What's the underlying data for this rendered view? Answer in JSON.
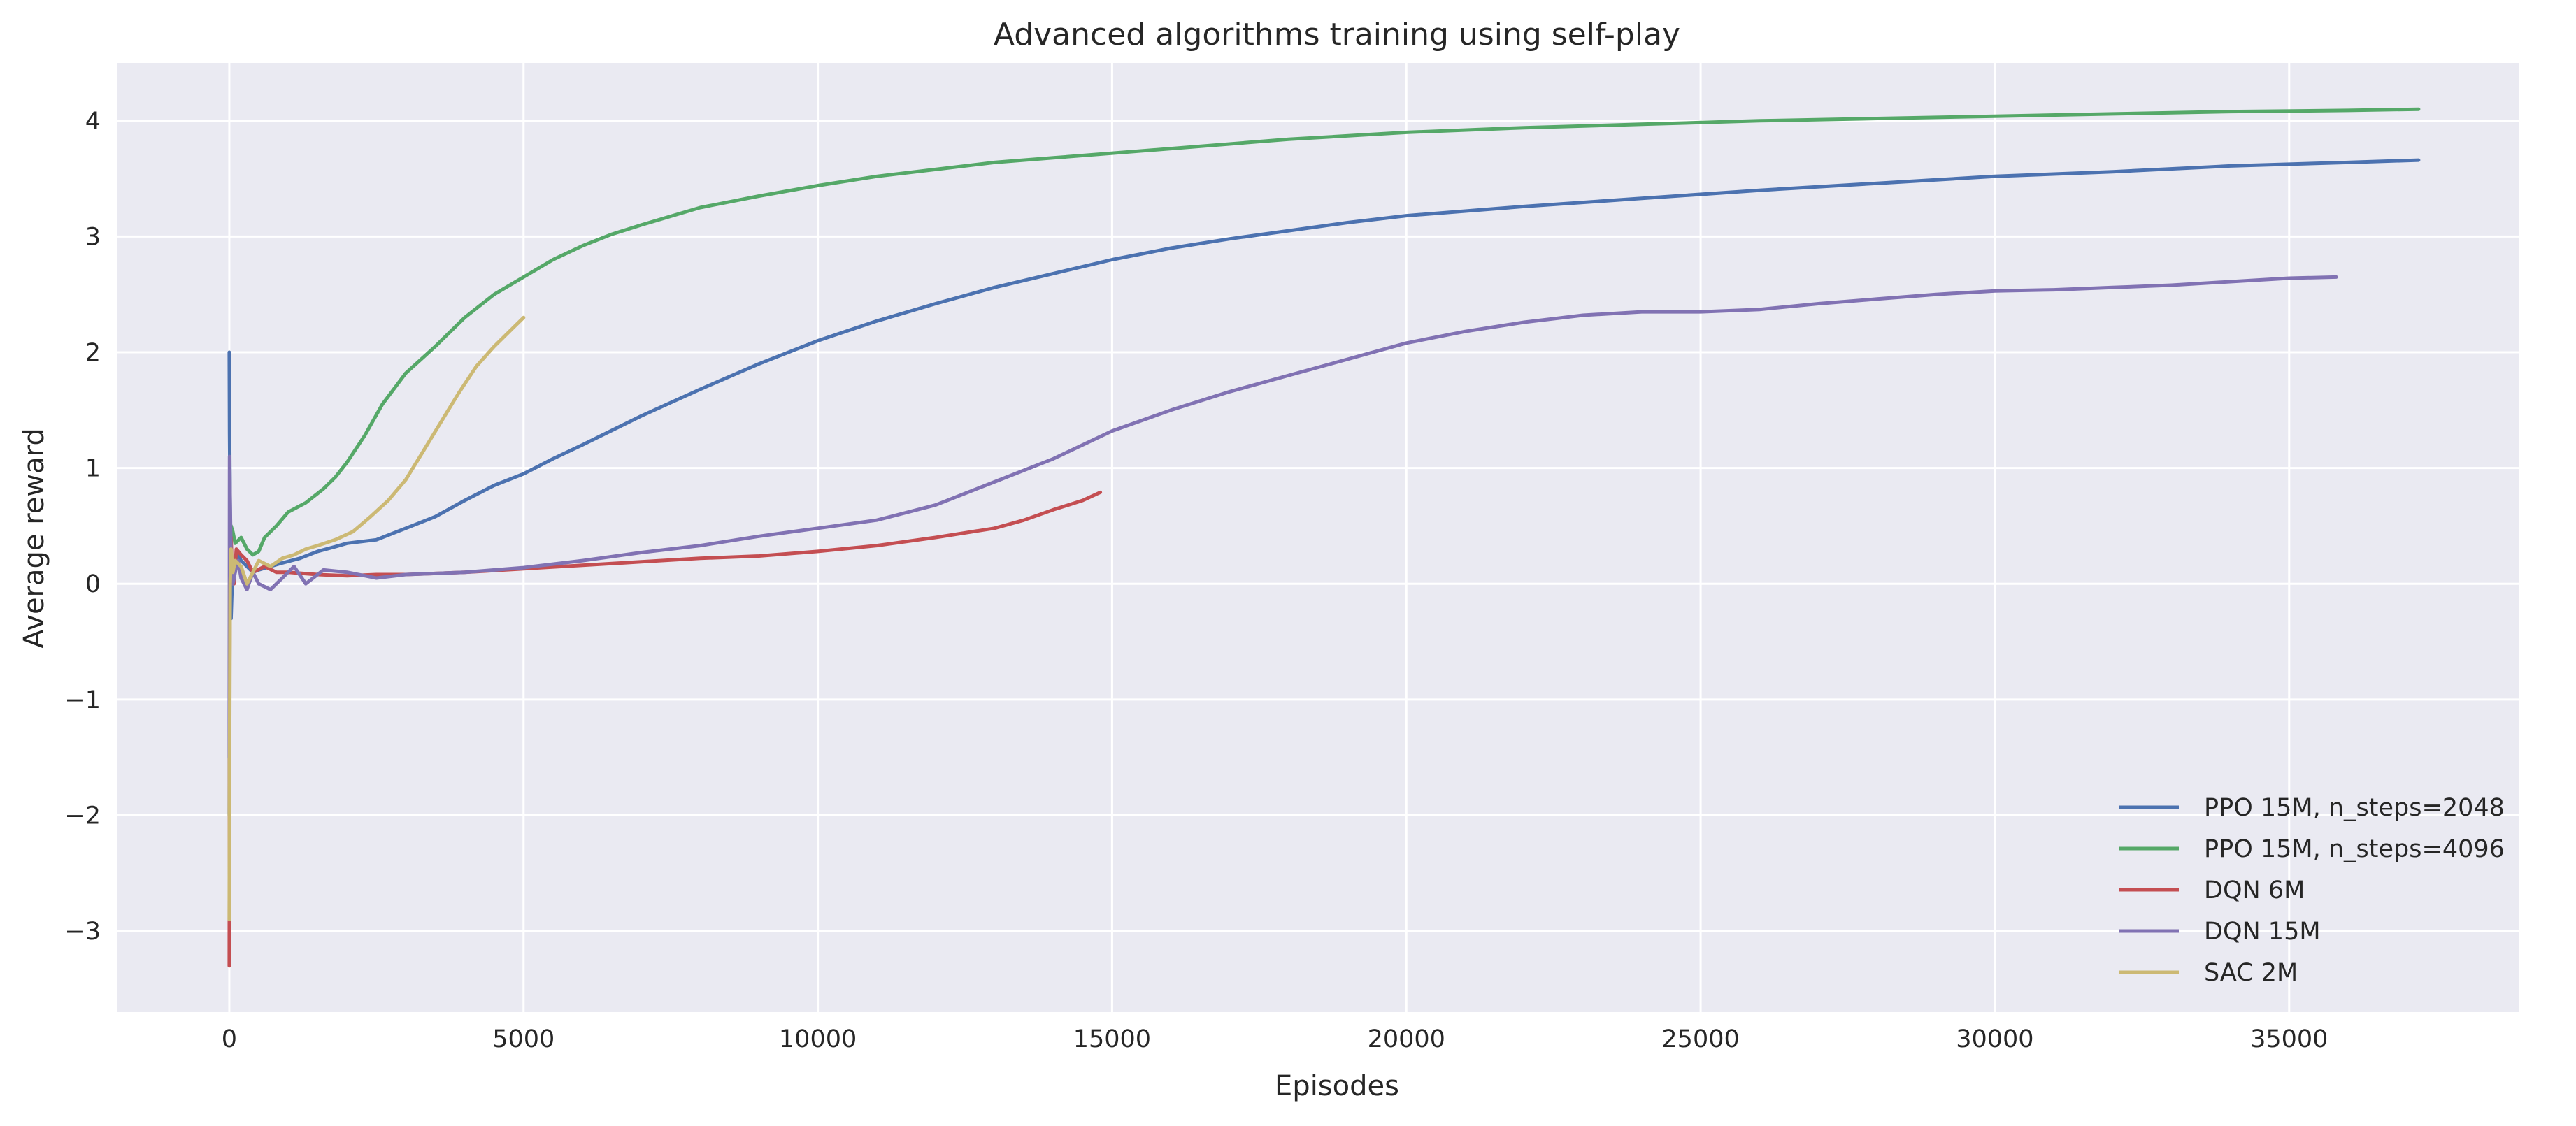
{
  "chart_data": {
    "type": "line",
    "title": "Advanced algorithms training using self-play",
    "xlabel": "Episodes",
    "ylabel": "Average reward",
    "xlim": [
      -1900,
      38900
    ],
    "ylim": [
      -3.7,
      4.5
    ],
    "xticks": [
      0,
      5000,
      10000,
      15000,
      20000,
      25000,
      30000,
      35000
    ],
    "xtick_labels": [
      "0",
      "5000",
      "10000",
      "15000",
      "20000",
      "25000",
      "30000",
      "35000"
    ],
    "yticks": [
      -3,
      -2,
      -1,
      0,
      1,
      2,
      3,
      4
    ],
    "ytick_labels": [
      "−3",
      "−2",
      "−1",
      "0",
      "1",
      "2",
      "3",
      "4"
    ],
    "grid": true,
    "legend_position": "lower-right",
    "background_color": "#eaeaf2",
    "series": [
      {
        "name": "PPO 15M, n_steps=2048",
        "color": "#4c72b0",
        "x": [
          0,
          5,
          15,
          30,
          60,
          100,
          150,
          200,
          300,
          400,
          500,
          700,
          900,
          1200,
          1500,
          1800,
          2000,
          2500,
          3000,
          3500,
          4000,
          4500,
          5000,
          5500,
          6000,
          7000,
          8000,
          9000,
          10000,
          11000,
          12000,
          13000,
          14000,
          15000,
          16000,
          17000,
          18000,
          19000,
          20000,
          22000,
          24000,
          26000,
          28000,
          30000,
          32000,
          34000,
          36000,
          37200
        ],
        "y": [
          2.0,
          1.3,
          0.6,
          -0.3,
          0.2,
          0.1,
          0.25,
          0.2,
          0.15,
          0.1,
          0.12,
          0.15,
          0.18,
          0.22,
          0.28,
          0.32,
          0.35,
          0.38,
          0.48,
          0.58,
          0.72,
          0.85,
          0.95,
          1.08,
          1.2,
          1.45,
          1.68,
          1.9,
          2.1,
          2.27,
          2.42,
          2.56,
          2.68,
          2.8,
          2.9,
          2.98,
          3.05,
          3.12,
          3.18,
          3.26,
          3.33,
          3.4,
          3.46,
          3.52,
          3.56,
          3.61,
          3.64,
          3.66
        ]
      },
      {
        "name": "PPO 15M, n_steps=4096",
        "color": "#55a868",
        "x": [
          0,
          10,
          30,
          60,
          100,
          200,
          300,
          400,
          500,
          600,
          800,
          1000,
          1300,
          1600,
          1800,
          2000,
          2300,
          2600,
          3000,
          3500,
          4000,
          4500,
          5000,
          5500,
          6000,
          6500,
          7000,
          8000,
          9000,
          10000,
          11000,
          12000,
          13000,
          14000,
          16000,
          18000,
          20000,
          22000,
          24000,
          26000,
          28000,
          30000,
          32000,
          34000,
          36000,
          37200
        ],
        "y": [
          -2.0,
          0.4,
          0.5,
          0.45,
          0.35,
          0.4,
          0.3,
          0.25,
          0.28,
          0.4,
          0.5,
          0.62,
          0.7,
          0.82,
          0.92,
          1.05,
          1.28,
          1.55,
          1.82,
          2.05,
          2.3,
          2.5,
          2.65,
          2.8,
          2.92,
          3.02,
          3.1,
          3.25,
          3.35,
          3.44,
          3.52,
          3.58,
          3.64,
          3.68,
          3.76,
          3.84,
          3.9,
          3.94,
          3.97,
          4.0,
          4.02,
          4.04,
          4.06,
          4.08,
          4.09,
          4.1
        ]
      },
      {
        "name": "DQN 6M",
        "color": "#c44e52",
        "x": [
          0,
          5,
          15,
          30,
          50,
          80,
          120,
          200,
          300,
          400,
          600,
          800,
          1000,
          1500,
          2000,
          2500,
          3000,
          4000,
          5000,
          6000,
          7000,
          8000,
          9000,
          10000,
          11000,
          12000,
          13000,
          13500,
          14000,
          14500,
          14800
        ],
        "y": [
          -3.3,
          -0.9,
          0.2,
          0.4,
          0.1,
          0.0,
          0.3,
          0.25,
          0.2,
          0.1,
          0.15,
          0.1,
          0.1,
          0.08,
          0.07,
          0.08,
          0.08,
          0.1,
          0.13,
          0.16,
          0.19,
          0.22,
          0.24,
          0.28,
          0.33,
          0.4,
          0.48,
          0.55,
          0.64,
          0.72,
          0.79
        ]
      },
      {
        "name": "DQN 15M",
        "color": "#8172b3",
        "x": [
          0,
          5,
          15,
          30,
          60,
          100,
          150,
          200,
          300,
          400,
          500,
          700,
          900,
          1100,
          1300,
          1600,
          2000,
          2500,
          3000,
          4000,
          5000,
          6000,
          7000,
          8000,
          9000,
          10000,
          11000,
          12000,
          13000,
          14000,
          15000,
          16000,
          17000,
          18000,
          19000,
          20000,
          21000,
          22000,
          23000,
          24000,
          25000,
          26000,
          27000,
          28000,
          29000,
          30000,
          31000,
          32000,
          33000,
          34000,
          35000,
          35800
        ],
        "y": [
          -1.5,
          1.1,
          0.7,
          0.2,
          0.0,
          0.1,
          0.2,
          0.05,
          -0.05,
          0.1,
          0.0,
          -0.05,
          0.05,
          0.15,
          0.0,
          0.12,
          0.1,
          0.05,
          0.08,
          0.1,
          0.14,
          0.2,
          0.27,
          0.33,
          0.41,
          0.48,
          0.55,
          0.68,
          0.88,
          1.08,
          1.32,
          1.5,
          1.66,
          1.8,
          1.94,
          2.08,
          2.18,
          2.26,
          2.32,
          2.35,
          2.35,
          2.37,
          2.42,
          2.46,
          2.5,
          2.53,
          2.54,
          2.56,
          2.58,
          2.61,
          2.64,
          2.65
        ]
      },
      {
        "name": "SAC 2M",
        "color": "#ccb974",
        "x": [
          0,
          5,
          15,
          30,
          60,
          100,
          200,
          300,
          400,
          500,
          700,
          900,
          1100,
          1300,
          1500,
          1800,
          2100,
          2400,
          2700,
          3000,
          3300,
          3600,
          3900,
          4200,
          4500,
          4800,
          5000
        ],
        "y": [
          -2.9,
          -1.5,
          0.0,
          0.3,
          0.1,
          0.2,
          0.15,
          0.0,
          0.1,
          0.2,
          0.15,
          0.22,
          0.25,
          0.3,
          0.33,
          0.38,
          0.45,
          0.58,
          0.72,
          0.9,
          1.15,
          1.4,
          1.65,
          1.88,
          2.05,
          2.2,
          2.3
        ]
      }
    ]
  }
}
